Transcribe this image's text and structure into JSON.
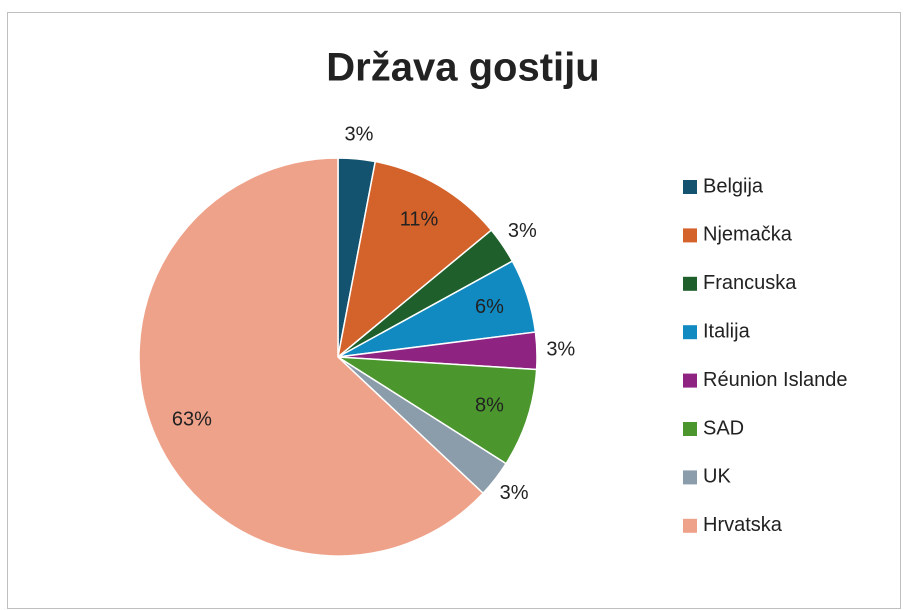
{
  "chart_data": {
    "type": "pie",
    "title": "Država gostiju",
    "categories": [
      "Belgija",
      "Njemačka",
      "Francuska",
      "Italija",
      "Réunion Islande",
      "SAD",
      "UK",
      "Hrvatska"
    ],
    "values": [
      3,
      11,
      3,
      6,
      3,
      8,
      3,
      63
    ],
    "value_labels": [
      "3%",
      "11%",
      "3%",
      "6%",
      "3%",
      "8%",
      "3%",
      "63%"
    ],
    "colors": [
      "#14536f",
      "#d4622b",
      "#1f5f2b",
      "#1189c1",
      "#8f2381",
      "#4b972e",
      "#8b9daa",
      "#efa28a"
    ],
    "legend": "right"
  }
}
